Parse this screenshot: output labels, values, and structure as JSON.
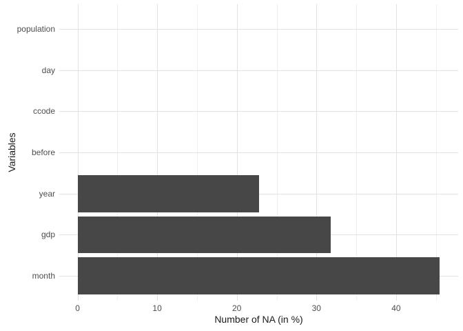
{
  "chart_data": {
    "type": "bar",
    "orientation": "horizontal",
    "title": "",
    "xlabel": "Number of NA (in %)",
    "ylabel": "Variables",
    "categories_top_to_bottom": [
      "population",
      "day",
      "ccode",
      "before",
      "year",
      "gdp",
      "month"
    ],
    "values": [
      0,
      0,
      0,
      0,
      22.8,
      31.8,
      45.5
    ],
    "x_major_ticks": [
      0,
      10,
      20,
      30,
      40
    ],
    "x_minor_gridlines": [
      5,
      15,
      25,
      35,
      45
    ],
    "xlim": [
      -2.3,
      47.8
    ],
    "grid": "major-and-minor-vertical, major-horizontal-at-categories",
    "legend": false,
    "colors": {
      "bar": "#474747",
      "grid_major": "#e2e2e2",
      "grid_minor": "#efefef",
      "tick_label": "#4d4d4d",
      "axis_title": "#1a1a1a",
      "background": "#ffffff"
    }
  }
}
